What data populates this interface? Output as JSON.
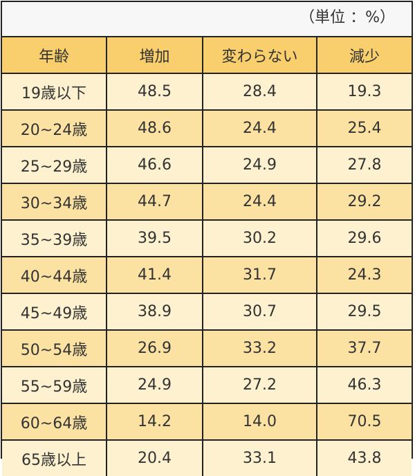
{
  "unit_label": "（単位 ：%）",
  "colors": {
    "header": "#f8cf6c",
    "row_light": "#fdf1cf",
    "row_dark": "#fbe2a3",
    "border": "#222222"
  },
  "chart_data": {
    "type": "table",
    "columns": [
      "年齢",
      "増加",
      "変わらない",
      "減少"
    ],
    "rows": [
      [
        "19歳以下",
        "48.5",
        "28.4",
        "19.3"
      ],
      [
        "20~24歳",
        "48.6",
        "24.4",
        "25.4"
      ],
      [
        "25~29歳",
        "46.6",
        "24.9",
        "27.8"
      ],
      [
        "30~34歳",
        "44.7",
        "24.4",
        "29.2"
      ],
      [
        "35~39歳",
        "39.5",
        "30.2",
        "29.6"
      ],
      [
        "40~44歳",
        "41.4",
        "31.7",
        "24.3"
      ],
      [
        "45~49歳",
        "38.9",
        "30.7",
        "29.5"
      ],
      [
        "50~54歳",
        "26.9",
        "33.2",
        "37.7"
      ],
      [
        "55~59歳",
        "24.9",
        "27.2",
        "46.3"
      ],
      [
        "60~64歳",
        "14.2",
        "14.0",
        "70.5"
      ],
      [
        "65歳以上",
        "20.4",
        "33.1",
        "43.8"
      ]
    ]
  }
}
